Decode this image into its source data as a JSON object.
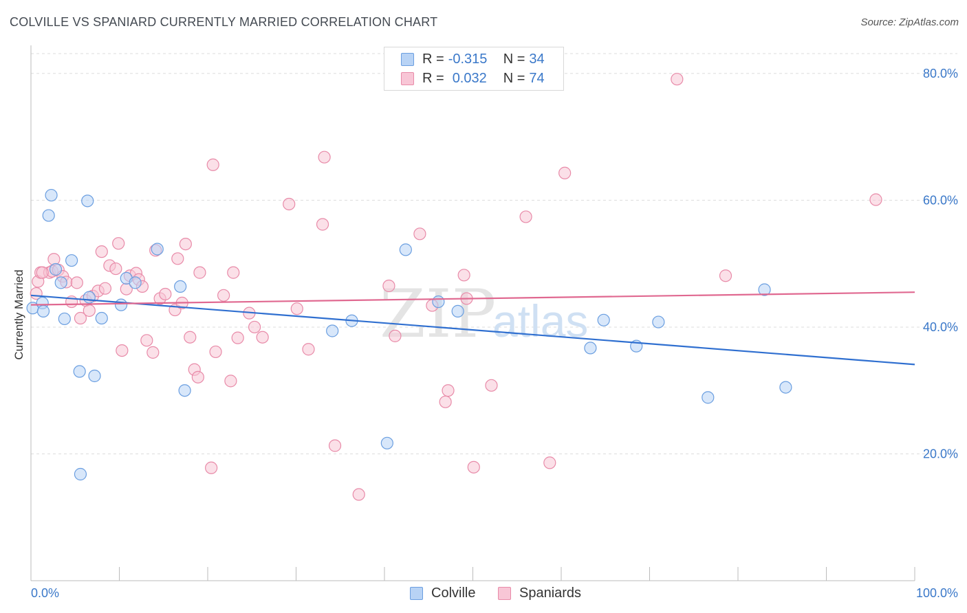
{
  "header": {
    "title": "COLVILLE VS SPANIARD CURRENTLY MARRIED CORRELATION CHART",
    "source": "Source: ZipAtlas.com"
  },
  "legend": {
    "colville": {
      "r_label": "R =",
      "r_value": "-0.315",
      "n_label": "N =",
      "n_value": "34"
    },
    "spaniards": {
      "r_label": "R =",
      "r_value": "0.032",
      "n_label": "N =",
      "n_value": "74"
    }
  },
  "bottom_legend": {
    "colville": "Colville",
    "spaniards": "Spaniards"
  },
  "watermark": {
    "zip": "ZIP",
    "atlas": "atlas"
  },
  "colors": {
    "colville_fill": "#b8d3f5",
    "colville_stroke": "#6a9ee0",
    "colville_line": "#2f6fd0",
    "spaniards_fill": "#f8c6d6",
    "spaniards_stroke": "#e88aa8",
    "spaniards_line": "#e06890",
    "tick_text": "#3a78c9",
    "grid": "#dcdcdc"
  },
  "chart_data": {
    "type": "scatter",
    "title": "COLVILLE VS SPANIARD CURRENTLY MARRIED CORRELATION CHART",
    "xlabel": "",
    "ylabel": "Currently Married",
    "xlim": [
      0,
      100
    ],
    "ylim": [
      0,
      84
    ],
    "x_tick_labels": [
      "0.0%",
      "100.0%"
    ],
    "y_ticks": [
      20,
      40,
      60,
      80
    ],
    "y_tick_labels": [
      "20.0%",
      "40.0%",
      "60.0%",
      "80.0%"
    ],
    "grid": true,
    "series": [
      {
        "name": "Colville",
        "trend": {
          "x": [
            0,
            100
          ],
          "y": [
            45.0,
            34.1
          ]
        },
        "points": [
          [
            0.2,
            43.0
          ],
          [
            1.3,
            43.8
          ],
          [
            1.4,
            42.5
          ],
          [
            2.0,
            57.6
          ],
          [
            2.3,
            60.8
          ],
          [
            2.8,
            49.1
          ],
          [
            3.4,
            47.0
          ],
          [
            3.8,
            41.3
          ],
          [
            4.6,
            50.5
          ],
          [
            5.5,
            33.0
          ],
          [
            5.6,
            16.8
          ],
          [
            6.4,
            59.9
          ],
          [
            6.6,
            44.7
          ],
          [
            7.2,
            32.3
          ],
          [
            8.0,
            41.4
          ],
          [
            10.2,
            43.5
          ],
          [
            10.8,
            47.7
          ],
          [
            11.8,
            47.0
          ],
          [
            14.3,
            52.3
          ],
          [
            16.9,
            46.4
          ],
          [
            17.4,
            30.0
          ],
          [
            34.1,
            39.4
          ],
          [
            36.3,
            41.0
          ],
          [
            40.3,
            21.7
          ],
          [
            42.4,
            52.2
          ],
          [
            46.1,
            44.0
          ],
          [
            48.3,
            42.5
          ],
          [
            63.3,
            36.7
          ],
          [
            64.8,
            41.1
          ],
          [
            68.5,
            37.0
          ],
          [
            71.0,
            40.8
          ],
          [
            76.6,
            28.9
          ],
          [
            83.0,
            45.9
          ],
          [
            85.4,
            30.5
          ]
        ]
      },
      {
        "name": "Spaniards",
        "trend": {
          "x": [
            0,
            100
          ],
          "y": [
            43.5,
            45.5
          ]
        },
        "points": [
          [
            0.6,
            45.3
          ],
          [
            0.8,
            47.2
          ],
          [
            1.1,
            48.6
          ],
          [
            2.1,
            48.6
          ],
          [
            2.4,
            48.8
          ],
          [
            2.6,
            50.7
          ],
          [
            3.1,
            49.0
          ],
          [
            3.6,
            48.0
          ],
          [
            4.0,
            47.1
          ],
          [
            4.6,
            44.0
          ],
          [
            5.2,
            47.0
          ],
          [
            5.6,
            41.4
          ],
          [
            6.2,
            44.2
          ],
          [
            6.6,
            42.6
          ],
          [
            7.0,
            44.9
          ],
          [
            7.6,
            45.7
          ],
          [
            8.0,
            51.9
          ],
          [
            8.4,
            46.1
          ],
          [
            8.9,
            49.7
          ],
          [
            9.6,
            49.2
          ],
          [
            9.9,
            53.2
          ],
          [
            10.3,
            36.3
          ],
          [
            10.8,
            46.0
          ],
          [
            11.2,
            48.1
          ],
          [
            11.9,
            48.5
          ],
          [
            12.2,
            47.5
          ],
          [
            12.6,
            46.4
          ],
          [
            13.1,
            37.9
          ],
          [
            13.8,
            36.0
          ],
          [
            14.1,
            52.1
          ],
          [
            14.6,
            44.5
          ],
          [
            15.2,
            45.2
          ],
          [
            16.3,
            42.7
          ],
          [
            16.6,
            50.8
          ],
          [
            17.1,
            43.8
          ],
          [
            17.5,
            53.1
          ],
          [
            18.0,
            38.4
          ],
          [
            18.5,
            33.3
          ],
          [
            18.9,
            32.1
          ],
          [
            19.1,
            48.6
          ],
          [
            20.4,
            17.8
          ],
          [
            20.6,
            65.6
          ],
          [
            20.9,
            36.1
          ],
          [
            21.8,
            45.0
          ],
          [
            22.6,
            31.5
          ],
          [
            22.9,
            48.6
          ],
          [
            23.4,
            38.3
          ],
          [
            24.7,
            42.2
          ],
          [
            25.3,
            40.0
          ],
          [
            26.2,
            38.4
          ],
          [
            29.2,
            59.4
          ],
          [
            30.1,
            42.9
          ],
          [
            31.4,
            36.5
          ],
          [
            33.0,
            56.2
          ],
          [
            33.2,
            66.8
          ],
          [
            34.4,
            21.3
          ],
          [
            37.1,
            13.6
          ],
          [
            40.5,
            46.5
          ],
          [
            41.2,
            38.6
          ],
          [
            44.0,
            54.7
          ],
          [
            45.4,
            43.4
          ],
          [
            46.9,
            28.2
          ],
          [
            47.2,
            30.0
          ],
          [
            49.0,
            48.2
          ],
          [
            49.3,
            44.5
          ],
          [
            50.1,
            17.9
          ],
          [
            52.1,
            30.8
          ],
          [
            56.0,
            57.4
          ],
          [
            58.7,
            18.6
          ],
          [
            60.4,
            64.3
          ],
          [
            73.1,
            79.1
          ],
          [
            78.6,
            48.1
          ],
          [
            95.6,
            60.1
          ],
          [
            1.3,
            48.6
          ]
        ]
      }
    ]
  }
}
